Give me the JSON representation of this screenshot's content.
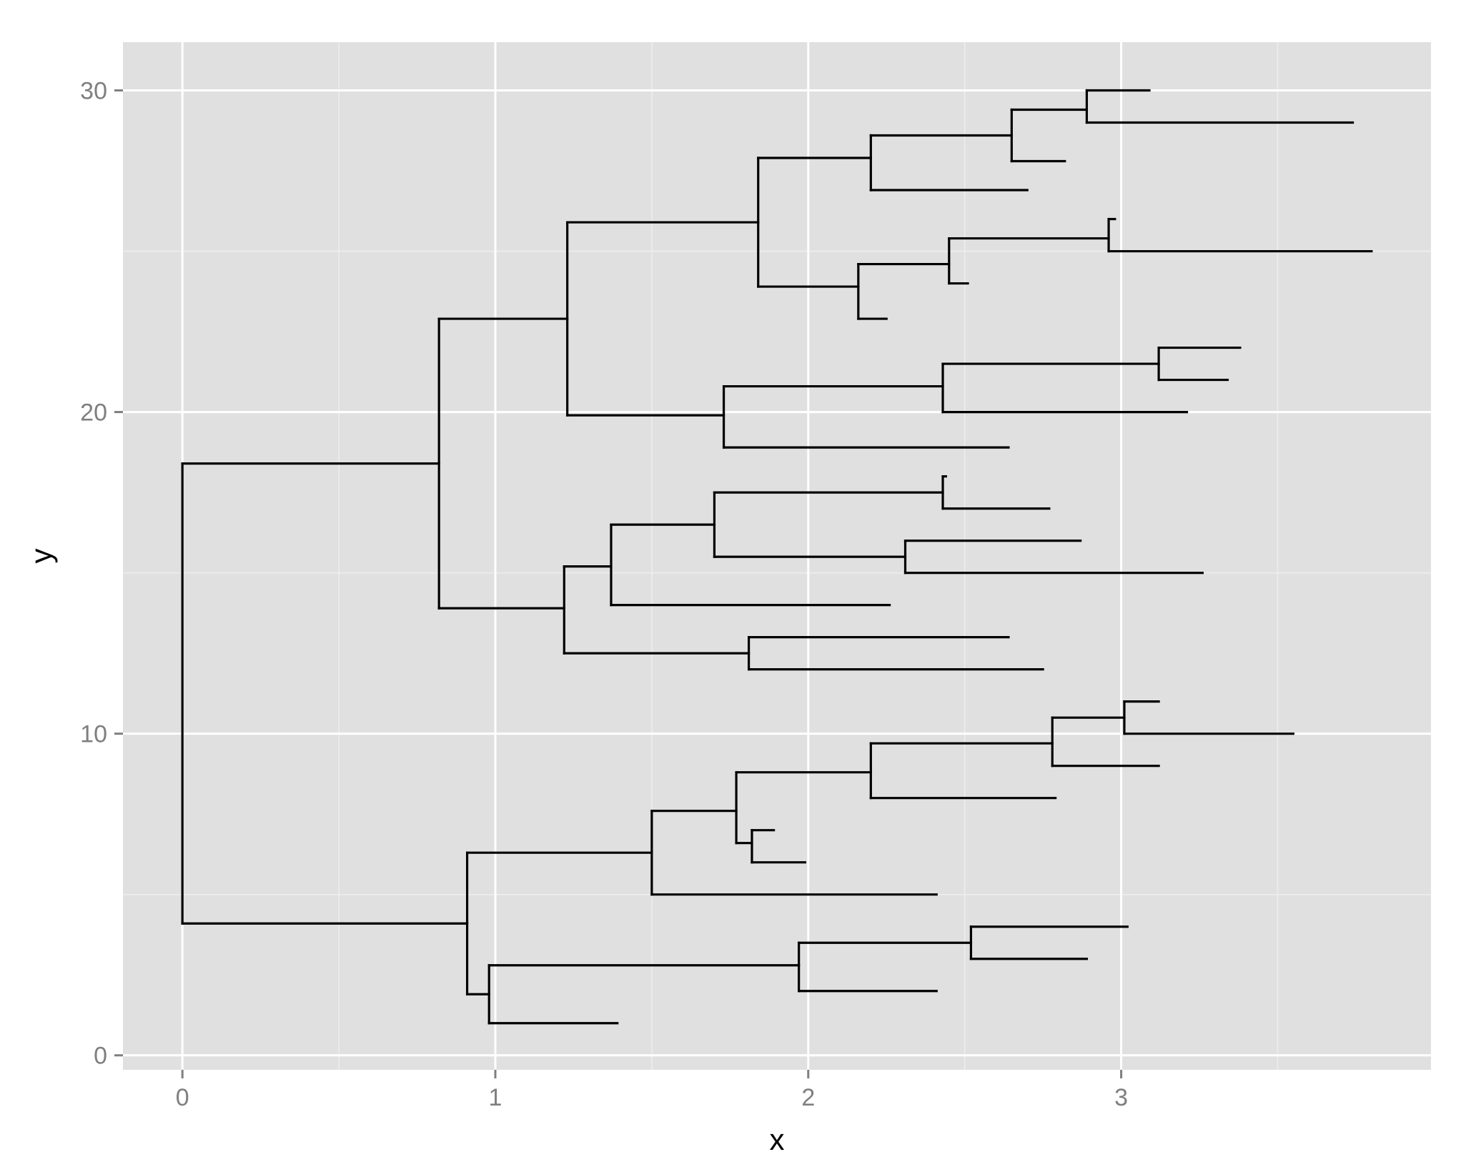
{
  "chart_data": {
    "type": "tree",
    "xlabel": "x",
    "ylabel": "y",
    "xlim": [
      -0.19,
      3.99
    ],
    "ylim": [
      -0.45,
      31.5
    ],
    "x_ticks": [
      0,
      1,
      2,
      3
    ],
    "x_tick_labels": [
      "0",
      "1",
      "2",
      "3"
    ],
    "y_ticks": [
      0,
      10,
      20,
      30
    ],
    "y_tick_labels": [
      "0",
      "10",
      "20",
      "30"
    ],
    "grid": true,
    "legend": "none",
    "colors": {
      "panel": "#e0e0e0",
      "grid_major": "#ffffff",
      "grid_minor": "#eeeeee",
      "line": "#000000",
      "tick_text": "#7f7f7f"
    },
    "horizontal_segments": [
      [
        0.0,
        18.4,
        0.82
      ],
      [
        0.0,
        4.1,
        0.91
      ],
      [
        0.82,
        22.9,
        1.23
      ],
      [
        0.82,
        13.9,
        1.22
      ],
      [
        1.23,
        25.9,
        1.84
      ],
      [
        1.23,
        19.9,
        1.73
      ],
      [
        1.84,
        27.9,
        2.2
      ],
      [
        1.84,
        23.9,
        2.16
      ],
      [
        2.2,
        28.6,
        2.65
      ],
      [
        2.2,
        26.9,
        2.7
      ],
      [
        2.65,
        29.4,
        2.89
      ],
      [
        2.65,
        27.8,
        2.82
      ],
      [
        2.89,
        30.0,
        3.09
      ],
      [
        2.89,
        29.0,
        3.74
      ],
      [
        2.16,
        24.6,
        2.45
      ],
      [
        2.16,
        22.9,
        2.25
      ],
      [
        2.45,
        25.4,
        2.96
      ],
      [
        2.45,
        24.0,
        2.51
      ],
      [
        2.96,
        26.0,
        2.98
      ],
      [
        2.96,
        25.0,
        3.8
      ],
      [
        1.73,
        20.8,
        2.43
      ],
      [
        1.73,
        18.9,
        2.64
      ],
      [
        2.43,
        21.5,
        3.12
      ],
      [
        2.43,
        20.0,
        3.21
      ],
      [
        3.12,
        22.0,
        3.38
      ],
      [
        3.12,
        21.0,
        3.34
      ],
      [
        1.22,
        15.2,
        1.37
      ],
      [
        1.22,
        12.5,
        1.81
      ],
      [
        1.37,
        16.5,
        1.7
      ],
      [
        1.37,
        14.0,
        2.26
      ],
      [
        1.7,
        17.5,
        2.43
      ],
      [
        1.7,
        15.5,
        2.31
      ],
      [
        2.43,
        18.0,
        2.44
      ],
      [
        2.43,
        17.0,
        2.77
      ],
      [
        2.31,
        16.0,
        2.87
      ],
      [
        2.31,
        15.0,
        3.26
      ],
      [
        1.81,
        13.0,
        2.64
      ],
      [
        1.81,
        12.0,
        2.75
      ],
      [
        0.91,
        6.3,
        1.5
      ],
      [
        0.91,
        1.9,
        0.98
      ],
      [
        1.5,
        7.6,
        1.77
      ],
      [
        1.5,
        5.0,
        2.41
      ],
      [
        1.77,
        8.8,
        2.2
      ],
      [
        1.77,
        6.6,
        1.82
      ],
      [
        2.2,
        9.7,
        2.78
      ],
      [
        2.2,
        8.0,
        2.79
      ],
      [
        2.78,
        10.5,
        3.01
      ],
      [
        2.78,
        9.0,
        3.12
      ],
      [
        3.01,
        11.0,
        3.12
      ],
      [
        3.01,
        10.0,
        3.55
      ],
      [
        1.82,
        7.0,
        1.89
      ],
      [
        1.82,
        6.0,
        1.99
      ],
      [
        0.98,
        2.8,
        1.97
      ],
      [
        0.98,
        1.0,
        1.39
      ],
      [
        1.97,
        3.5,
        2.52
      ],
      [
        1.97,
        2.0,
        2.41
      ],
      [
        2.52,
        4.0,
        3.02
      ],
      [
        2.52,
        3.0,
        2.89
      ]
    ],
    "vertical_segments": [
      [
        0.0,
        4.1,
        18.4
      ],
      [
        0.82,
        13.9,
        22.9
      ],
      [
        1.23,
        19.9,
        25.9
      ],
      [
        1.84,
        23.9,
        27.9
      ],
      [
        2.2,
        26.9,
        28.6
      ],
      [
        2.65,
        27.8,
        29.4
      ],
      [
        2.89,
        29.0,
        30.0
      ],
      [
        2.16,
        22.9,
        24.6
      ],
      [
        2.45,
        24.0,
        25.4
      ],
      [
        2.96,
        25.0,
        26.0
      ],
      [
        1.73,
        18.9,
        20.8
      ],
      [
        2.43,
        20.0,
        21.5
      ],
      [
        3.12,
        21.0,
        22.0
      ],
      [
        1.22,
        12.5,
        15.2
      ],
      [
        1.37,
        14.0,
        16.5
      ],
      [
        1.7,
        15.5,
        17.5
      ],
      [
        2.43,
        17.0,
        18.0
      ],
      [
        2.31,
        15.0,
        16.0
      ],
      [
        1.81,
        12.0,
        13.0
      ],
      [
        0.91,
        1.9,
        6.3
      ],
      [
        1.5,
        5.0,
        7.6
      ],
      [
        1.77,
        6.6,
        8.8
      ],
      [
        2.2,
        8.0,
        9.7
      ],
      [
        2.78,
        9.0,
        10.5
      ],
      [
        3.01,
        10.0,
        11.0
      ],
      [
        1.82,
        6.0,
        7.0
      ],
      [
        0.98,
        1.0,
        2.8
      ],
      [
        1.97,
        2.0,
        3.5
      ],
      [
        2.52,
        3.0,
        4.0
      ]
    ]
  }
}
